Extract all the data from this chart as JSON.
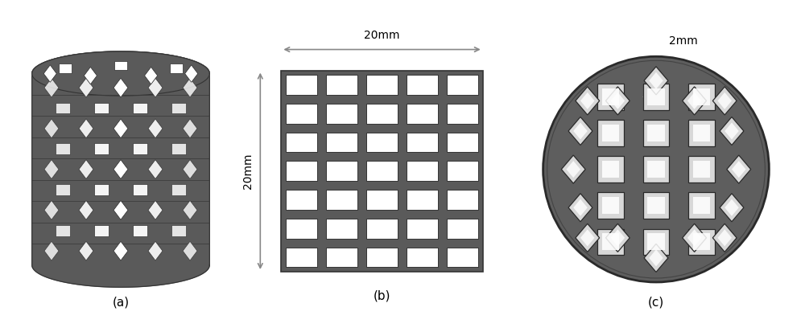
{
  "bg_color": "#ffffff",
  "scaffold_color": "#5a5a5a",
  "scaffold_dark": "#444444",
  "scaffold_edge": "#333333",
  "hole_white": "#f0f0f0",
  "hole_bright": "#ffffff",
  "label_a": "(a)",
  "label_b": "(b)",
  "label_c": "(c)",
  "dim_b_width": "20mm",
  "dim_b_height": "20mm",
  "dim_c": "2mm",
  "grid_rows": 7,
  "grid_cols": 5,
  "arrow_color": "#888888",
  "text_color": "#000000"
}
